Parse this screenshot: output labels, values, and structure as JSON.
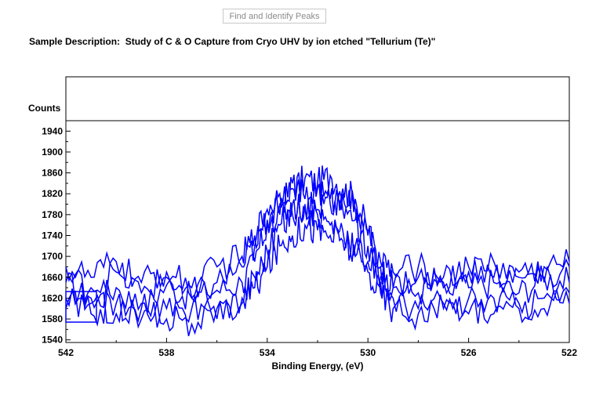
{
  "toolbar": {
    "find_peaks_label": "Find and Identify Peaks"
  },
  "sample": {
    "label": "Sample Description:",
    "text": "Study of C & O Capture from Cryo UHV by ion etched \"Tellurium (Te)\""
  },
  "colors": {
    "series": "#0000ff",
    "axis": "#000000",
    "button_text": "#8a8a8a"
  },
  "chart_data": {
    "type": "line",
    "title": "Sample Description:  Study of C & O Capture from Cryo UHV by ion etched \"Tellurium (Te)\"",
    "xlabel": "Binding Energy, (eV)",
    "ylabel": "Counts",
    "xlim": [
      542,
      522
    ],
    "ylim": [
      1535,
      1960
    ],
    "x_reversed": true,
    "grid": false,
    "x_ticks": [
      "542",
      "538",
      "534",
      "530",
      "526",
      "522"
    ],
    "y_ticks": [
      "1540",
      "1580",
      "1620",
      "1660",
      "1700",
      "1740",
      "1780",
      "1820",
      "1860",
      "1900",
      "1940"
    ],
    "series": [
      {
        "x": [
          542,
          541,
          540,
          539,
          538,
          537,
          536,
          535,
          534.5,
          534,
          533.5,
          533,
          532.5,
          532,
          531.5,
          531,
          530.5,
          530,
          529.5,
          529,
          528,
          527,
          526,
          525,
          524,
          523,
          522
        ],
        "values": [
          1650,
          1610,
          1640,
          1600,
          1645,
          1620,
          1635,
          1650,
          1690,
          1760,
          1800,
          1830,
          1850,
          1840,
          1855,
          1830,
          1810,
          1750,
          1680,
          1640,
          1630,
          1660,
          1640,
          1650,
          1630,
          1660,
          1650
        ]
      },
      {
        "x": [
          542,
          541,
          540,
          539,
          538,
          537,
          536,
          535,
          534.5,
          534,
          533.5,
          533,
          532.5,
          532,
          531.5,
          531,
          530.5,
          530,
          529.5,
          529,
          528,
          527,
          526,
          525,
          524,
          523,
          522
        ],
        "values": [
          1680,
          1660,
          1690,
          1650,
          1670,
          1640,
          1680,
          1700,
          1740,
          1790,
          1820,
          1840,
          1810,
          1830,
          1800,
          1820,
          1790,
          1740,
          1690,
          1670,
          1680,
          1650,
          1670,
          1690,
          1660,
          1680,
          1690
        ]
      },
      {
        "x": [
          542,
          541,
          540,
          539,
          538,
          537,
          536,
          535,
          534.5,
          534,
          533.5,
          533,
          532.5,
          532,
          531.5,
          531,
          530.5,
          530,
          529.5,
          529,
          528,
          527,
          526,
          525,
          524,
          523,
          522
        ],
        "values": [
          1620,
          1590,
          1610,
          1580,
          1600,
          1570,
          1600,
          1620,
          1660,
          1710,
          1760,
          1780,
          1800,
          1790,
          1810,
          1790,
          1770,
          1720,
          1660,
          1620,
          1600,
          1610,
          1590,
          1620,
          1600,
          1620,
          1610
        ]
      },
      {
        "x": [
          542,
          541,
          540,
          539,
          538,
          537,
          536,
          535,
          534.5,
          534,
          533.5,
          533,
          532.5,
          532,
          531.5,
          531,
          530.5,
          530,
          529.5,
          529,
          528,
          527,
          526,
          525,
          524,
          523,
          522
        ],
        "values": [
          1660,
          1640,
          1670,
          1630,
          1660,
          1620,
          1650,
          1680,
          1720,
          1770,
          1780,
          1800,
          1790,
          1780,
          1760,
          1750,
          1720,
          1690,
          1650,
          1640,
          1660,
          1640,
          1680,
          1660,
          1670,
          1650,
          1680
        ]
      },
      {
        "x": [
          542,
          541,
          540,
          539,
          538,
          537,
          536,
          535,
          534.5,
          534,
          533.5,
          533,
          532.5,
          532,
          531.5,
          531,
          530.5,
          530,
          529.5,
          529,
          528,
          527,
          526,
          525,
          524,
          523,
          522
        ],
        "values": [
          1600,
          1620,
          1590,
          1610,
          1580,
          1600,
          1580,
          1610,
          1640,
          1680,
          1720,
          1740,
          1760,
          1750,
          1740,
          1730,
          1700,
          1670,
          1630,
          1600,
          1590,
          1600,
          1620,
          1590,
          1610,
          1600,
          1630
        ]
      }
    ]
  }
}
